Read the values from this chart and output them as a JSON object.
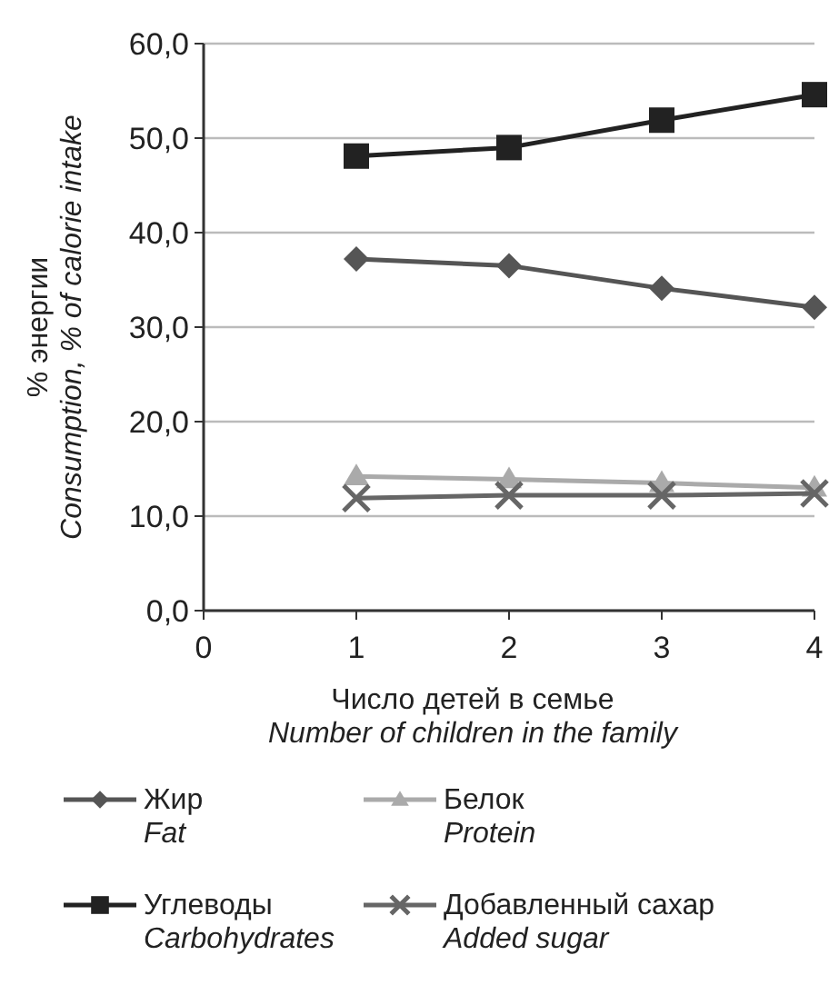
{
  "chart_data": {
    "type": "line",
    "xlabel": "Число детей в семье\nNumber of children in the family",
    "ylabel": "% энергии\nConsumption, % of calorie intake",
    "x": [
      1,
      2,
      3,
      4
    ],
    "xlim": [
      0,
      4
    ],
    "xticks": [
      0,
      1,
      2,
      3,
      4
    ],
    "ylim": [
      0,
      60
    ],
    "yticks": [
      {
        "value": 0,
        "label": "0,0"
      },
      {
        "value": 10,
        "label": "10,0"
      },
      {
        "value": 20,
        "label": "20,0"
      },
      {
        "value": 30,
        "label": "30,0"
      },
      {
        "value": 40,
        "label": "40,0"
      },
      {
        "value": 50,
        "label": "50,0"
      },
      {
        "value": 60,
        "label": "60,0"
      }
    ],
    "grid": "y",
    "legend": "bottom",
    "line_style": "solid",
    "series": [
      {
        "name": "Жир\nFat",
        "color": "#555555",
        "marker": "diamond",
        "values": [
          37.2,
          36.5,
          34.1,
          32.1
        ]
      },
      {
        "name": "Белок\nProtein",
        "color": "#aaaaaa",
        "marker": "triangle",
        "values": [
          14.2,
          13.9,
          13.5,
          13.0
        ]
      },
      {
        "name": "Углеводы\nCarbohydrates",
        "color": "#222222",
        "marker": "square",
        "values": [
          48.1,
          49.0,
          51.9,
          54.6
        ]
      },
      {
        "name": "Добавленный сахар\nAdded sugar",
        "color": "#666666",
        "marker": "cross",
        "values": [
          11.9,
          12.2,
          12.2,
          12.4
        ]
      }
    ]
  }
}
